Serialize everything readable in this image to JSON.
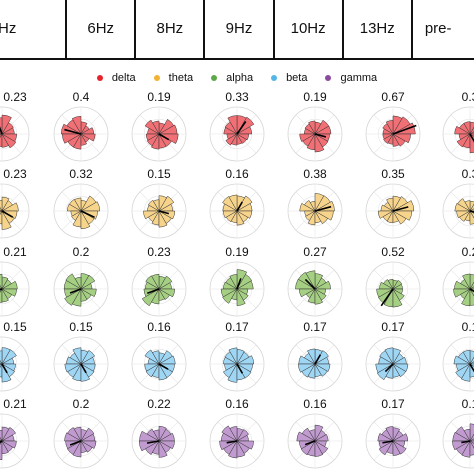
{
  "header": {
    "columns": [
      "Hz",
      "6Hz",
      "8Hz",
      "9Hz",
      "10Hz",
      "13Hz",
      "pre-"
    ]
  },
  "legend": [
    {
      "label": "delta",
      "color": "#e8232b"
    },
    {
      "label": "theta",
      "color": "#f2b233"
    },
    {
      "label": "alpha",
      "color": "#5fa84a"
    },
    {
      "label": "beta",
      "color": "#54b5e8"
    },
    {
      "label": "gamma",
      "color": "#8a4a9e"
    }
  ],
  "chart_data": {
    "type": "polar-histogram-grid",
    "columns": [
      "Hz",
      "6Hz",
      "8Hz",
      "9Hz",
      "10Hz",
      "13Hz",
      "pre-"
    ],
    "rows": [
      {
        "band": "delta",
        "fill": "#f07075",
        "values": [
          "0.23",
          "0.4",
          "0.19",
          "0.33",
          "0.19",
          "0.67",
          "0.3"
        ]
      },
      {
        "band": "theta",
        "fill": "#f7d48c",
        "values": [
          "0.23",
          "0.32",
          "0.15",
          "0.16",
          "0.38",
          "0.35",
          "0.3"
        ]
      },
      {
        "band": "alpha",
        "fill": "#a5cf82",
        "values": [
          "0.21",
          "0.2",
          "0.23",
          "0.19",
          "0.27",
          "0.52",
          "0.2"
        ]
      },
      {
        "band": "beta",
        "fill": "#9fd6f4",
        "values": [
          "0.15",
          "0.15",
          "0.16",
          "0.17",
          "0.17",
          "0.17",
          "0.1"
        ]
      },
      {
        "band": "gamma",
        "fill": "#c19bd0",
        "values": [
          "0.21",
          "0.2",
          "0.22",
          "0.16",
          "0.16",
          "0.17",
          "0.1"
        ]
      }
    ],
    "resultant_angle_deg": [
      [
        110,
        165,
        330,
        55,
        345,
        20,
        300
      ],
      [
        330,
        335,
        345,
        60,
        15,
        15,
        345
      ],
      [
        200,
        200,
        200,
        70,
        135,
        235,
        330
      ],
      [
        300,
        300,
        330,
        300,
        60,
        225,
        300
      ],
      [
        210,
        200,
        190,
        190,
        200,
        190,
        190
      ]
    ]
  }
}
